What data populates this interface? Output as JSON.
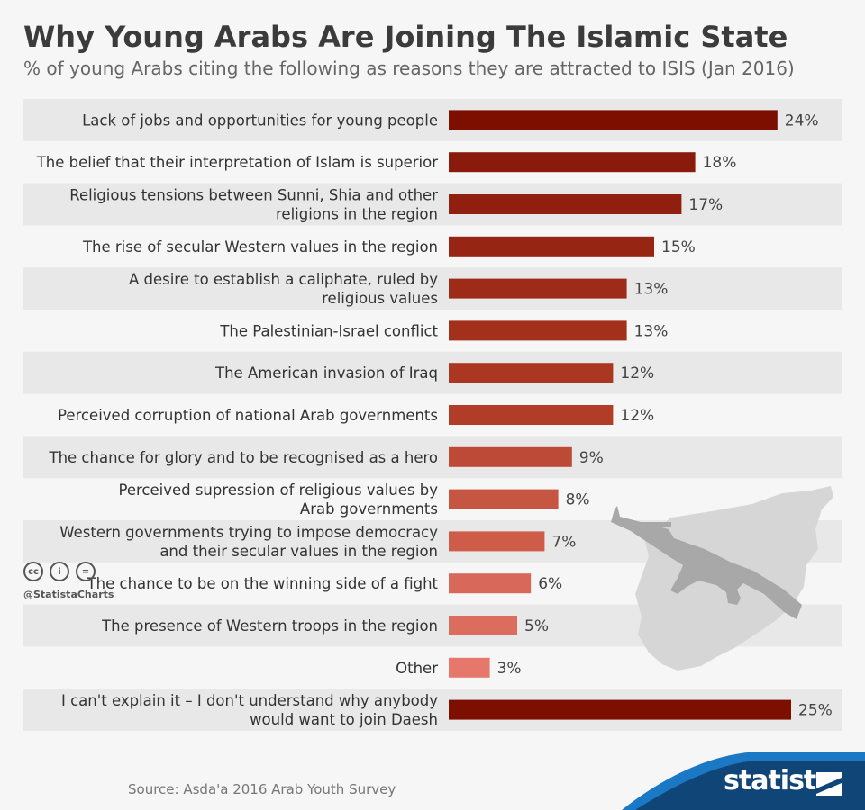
{
  "header": {
    "title": "Why Young Arabs Are Joining The Islamic State",
    "subtitle": "% of young Arabs citing the following as reasons they are attracted to ISIS (Jan 2016)"
  },
  "chart_data": {
    "type": "bar",
    "orientation": "horizontal",
    "title": "Why Young Arabs Are Joining The Islamic State",
    "subtitle": "% of young Arabs citing the following as reasons they are attracted to ISIS (Jan 2016)",
    "categories": [
      [
        "Lack of jobs and opportunities for young people"
      ],
      [
        "The belief that their interpretation of Islam is superior"
      ],
      [
        "Religious tensions between Sunni, Shia and other",
        "religions in the region"
      ],
      [
        "The rise of secular Western values in the region"
      ],
      [
        "A desire to establish a caliphate, ruled by",
        "religious values"
      ],
      [
        "The Palestinian-Israel conflict"
      ],
      [
        "The American invasion of Iraq"
      ],
      [
        "Perceived corruption of national Arab governments"
      ],
      [
        "The chance for glory and to be recognised as a hero"
      ],
      [
        "Perceived supression of religious values by",
        "Arab governments"
      ],
      [
        "Western governments trying to impose democracy",
        "and their secular values in the region"
      ],
      [
        "The chance to be on the winning side of a fight"
      ],
      [
        "The presence of Western troops in the region"
      ],
      [
        "Other"
      ],
      [
        "I can't explain it – I don't understand why anybody",
        "would want to join Daesh"
      ]
    ],
    "values": [
      24,
      18,
      17,
      15,
      13,
      13,
      12,
      12,
      9,
      8,
      7,
      6,
      5,
      3,
      25
    ],
    "value_labels": [
      "24%",
      "18%",
      "17%",
      "15%",
      "13%",
      "13%",
      "12%",
      "12%",
      "9%",
      "8%",
      "7%",
      "6%",
      "5%",
      "3%",
      "25%"
    ],
    "unit": "%",
    "colors": [
      "#7d0f00",
      "#8a1a0b",
      "#901f10",
      "#972513",
      "#9e2b17",
      "#a3301b",
      "#ab3722",
      "#b13d28",
      "#bd4a37",
      "#c65542",
      "#cd5c48",
      "#d8685a",
      "#dc6c5e",
      "#e5786a",
      "#7d0f00"
    ],
    "xlim": [
      0,
      25
    ],
    "grid": false,
    "legend": "none"
  },
  "credits": {
    "cc_icons": [
      "cc-icon",
      "by-icon",
      "nd-icon"
    ],
    "cc_symbols": [
      "cc",
      "i",
      "="
    ],
    "handle": "@StatistaCharts"
  },
  "footer": {
    "source": "Source: Asda'a 2016 Arab Youth Survey",
    "brand": "statista",
    "brand_color": "#0f4677",
    "wave_color": "#1a78c4"
  },
  "decoration": {
    "map_color": "#d6d6d6",
    "rifle_color": "#a8a8a8"
  }
}
